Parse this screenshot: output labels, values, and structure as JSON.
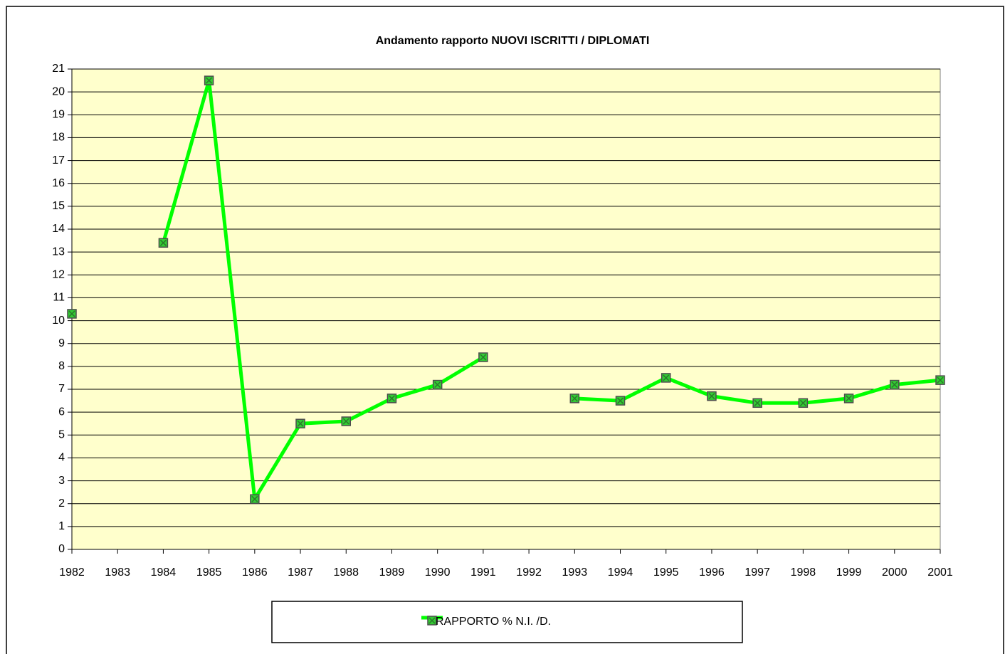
{
  "chart_data": {
    "type": "line",
    "title": "Andamento rapporto NUOVI ISCRITTI / DIPLOMATI",
    "categories": [
      "1982",
      "1983",
      "1984",
      "1985",
      "1986",
      "1987",
      "1988",
      "1989",
      "1990",
      "1991",
      "1992",
      "1993",
      "1994",
      "1995",
      "1996",
      "1997",
      "1998",
      "1999",
      "2000",
      "2001"
    ],
    "series": [
      {
        "name": "RAPPORTO % N.I. /D.",
        "color": "#00ff00",
        "values": [
          10.3,
          null,
          13.4,
          20.5,
          2.2,
          5.5,
          5.6,
          6.6,
          7.2,
          8.4,
          null,
          6.6,
          6.5,
          7.5,
          6.7,
          6.4,
          6.4,
          6.6,
          7.2,
          7.4
        ]
      }
    ],
    "ylim": [
      0,
      21
    ],
    "yticks": [
      0,
      1,
      2,
      3,
      4,
      5,
      6,
      7,
      8,
      9,
      10,
      11,
      12,
      13,
      14,
      15,
      16,
      17,
      18,
      19,
      20,
      21
    ],
    "grid": true,
    "plot_background": "#ffffcc",
    "legend": "bottom"
  }
}
